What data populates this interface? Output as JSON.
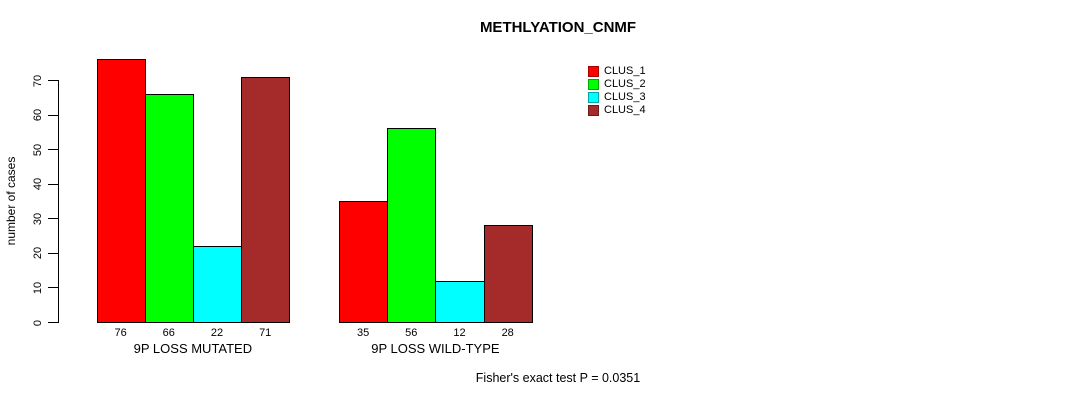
{
  "chart_data": {
    "type": "bar",
    "title": "METHLYATION_CNMF",
    "ylabel": "number of cases",
    "xlabel": "",
    "categories": [
      "9P LOSS MUTATED",
      "9P LOSS WILD-TYPE"
    ],
    "series": [
      {
        "name": "CLUS_1",
        "color": "#ff0000",
        "values": [
          76,
          35
        ]
      },
      {
        "name": "CLUS_2",
        "color": "#00ff00",
        "values": [
          66,
          56
        ]
      },
      {
        "name": "CLUS_3",
        "color": "#00ffff",
        "values": [
          22,
          12
        ]
      },
      {
        "name": "CLUS_4",
        "color": "#a52a2a",
        "values": [
          71,
          28
        ]
      }
    ],
    "bar_value_labels": [
      [
        "76",
        "66",
        "22",
        "71"
      ],
      [
        "35",
        "56",
        "12",
        "28"
      ]
    ],
    "yticks": [
      0,
      10,
      20,
      30,
      40,
      50,
      60,
      70
    ],
    "ylim": [
      0,
      77
    ],
    "grid": false,
    "legend_position": "top-right",
    "legend_entries": [
      "CLUS_1",
      "CLUS_2",
      "CLUS_3",
      "CLUS_4"
    ],
    "annotation": "Fisher's exact test P = 0.0351"
  },
  "colors": {
    "axis": "#000000",
    "bar_border": "#000000",
    "background": "#ffffff",
    "text": "#000000"
  }
}
